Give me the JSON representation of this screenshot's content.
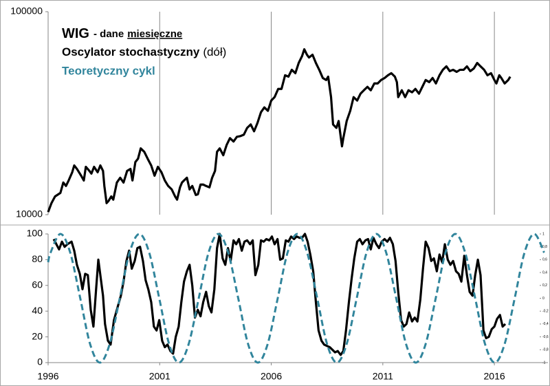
{
  "chart_data": [
    {
      "type": "line",
      "log_scale": true,
      "grid": "x",
      "show_xtick_labels": false,
      "annotations": [
        "- dane",
        "miesięczne"
      ],
      "xlim": [
        1996,
        2018.4
      ],
      "xticks": [
        1996,
        2001,
        2006,
        2011,
        2016
      ],
      "ylim": [
        10000,
        100000
      ],
      "yticks": [
        10000,
        100000
      ],
      "series": [
        {
          "name": "WIG",
          "color": "#000000",
          "x": [
            1996.0,
            1996.15,
            1996.31,
            1996.55,
            1996.68,
            1996.8,
            1996.92,
            1997.08,
            1997.17,
            1997.29,
            1997.48,
            1997.6,
            1997.69,
            1997.85,
            1997.94,
            1998.06,
            1998.22,
            1998.34,
            1998.46,
            1998.52,
            1998.62,
            1998.71,
            1998.83,
            1998.92,
            1999.08,
            1999.23,
            1999.38,
            1999.54,
            1999.69,
            1999.78,
            1999.91,
            2000.03,
            2000.15,
            2000.31,
            2000.46,
            2000.62,
            2000.77,
            2000.92,
            2001.08,
            2001.23,
            2001.38,
            2001.54,
            2001.69,
            2001.78,
            2001.91,
            2002.0,
            2002.09,
            2002.22,
            2002.34,
            2002.46,
            2002.62,
            2002.71,
            2002.83,
            2002.95,
            2003.08,
            2003.23,
            2003.35,
            2003.48,
            2003.57,
            2003.69,
            2003.85,
            2004.0,
            2004.15,
            2004.31,
            2004.46,
            2004.62,
            2004.77,
            2004.92,
            2005.08,
            2005.23,
            2005.38,
            2005.54,
            2005.69,
            2005.85,
            2006.0,
            2006.15,
            2006.31,
            2006.46,
            2006.62,
            2006.77,
            2006.92,
            2007.08,
            2007.23,
            2007.38,
            2007.48,
            2007.6,
            2007.69,
            2007.85,
            2008.0,
            2008.15,
            2008.31,
            2008.46,
            2008.55,
            2008.68,
            2008.77,
            2008.92,
            2009.02,
            2009.17,
            2009.23,
            2009.38,
            2009.54,
            2009.69,
            2009.85,
            2010.0,
            2010.15,
            2010.31,
            2010.46,
            2010.62,
            2010.77,
            2010.92,
            2011.08,
            2011.23,
            2011.38,
            2011.54,
            2011.63,
            2011.69,
            2011.85,
            2012.0,
            2012.15,
            2012.31,
            2012.46,
            2012.62,
            2012.77,
            2012.92,
            2013.08,
            2013.23,
            2013.38,
            2013.54,
            2013.69,
            2013.85,
            2014.0,
            2014.15,
            2014.31,
            2014.46,
            2014.62,
            2014.77,
            2014.92,
            2015.08,
            2015.23,
            2015.38,
            2015.54,
            2015.69,
            2015.85,
            2016.0,
            2016.09,
            2016.22,
            2016.31,
            2016.46,
            2016.62,
            2016.71
          ],
          "values": [
            10300,
            11400,
            12300,
            12800,
            14400,
            13850,
            14740,
            16180,
            17480,
            16810,
            15560,
            14740,
            17210,
            16430,
            15930,
            17210,
            16180,
            17480,
            16430,
            13850,
            11400,
            11700,
            12300,
            11860,
            14400,
            15200,
            14400,
            16430,
            16810,
            14740,
            18170,
            18880,
            21210,
            20400,
            18880,
            17480,
            15560,
            17210,
            16180,
            14740,
            13850,
            13320,
            12300,
            11860,
            13630,
            14400,
            14740,
            15200,
            13320,
            13850,
            12500,
            12600,
            14070,
            14070,
            13850,
            13630,
            15200,
            16430,
            20400,
            21210,
            19630,
            22050,
            23830,
            22930,
            24200,
            24390,
            24770,
            26770,
            27830,
            25750,
            28270,
            31990,
            33780,
            32490,
            36500,
            37950,
            41650,
            41650,
            48630,
            47870,
            51730,
            49780,
            55900,
            60400,
            65280,
            61360,
            59470,
            61360,
            55900,
            51730,
            47140,
            46060,
            47870,
            37950,
            27830,
            26770,
            28930,
            21710,
            23830,
            28930,
            32490,
            37950,
            36500,
            39450,
            41010,
            42630,
            41010,
            44310,
            44310,
            46060,
            47140,
            48630,
            49780,
            47870,
            45000,
            37950,
            41010,
            37950,
            41010,
            40070,
            41650,
            39450,
            42630,
            46060,
            45000,
            47140,
            44310,
            48630,
            51730,
            53780,
            50940,
            51730,
            50540,
            51730,
            51730,
            53780,
            50940,
            52540,
            55900,
            53780,
            51730,
            48630,
            49780,
            46060,
            44310,
            48630,
            47140,
            44310,
            46060,
            47870
          ]
        }
      ]
    },
    {
      "type": "line",
      "annotations": [
        "(dół)"
      ],
      "xlim": [
        1996,
        2018.4
      ],
      "xticks": [
        1996,
        2001,
        2006,
        2011,
        2016
      ],
      "ylim": [
        0,
        100
      ],
      "yticks": [
        0,
        20,
        40,
        60,
        80,
        100
      ],
      "y2lim": [
        -1,
        1
      ],
      "y2ticks": [
        {
          "value": 1,
          "label": "1"
        },
        {
          "value": 0.8,
          "label": "0,8"
        },
        {
          "value": 0.6,
          "label": "0,6"
        },
        {
          "value": 0.4,
          "label": "0,4"
        },
        {
          "value": 0.2,
          "label": "0,2"
        },
        {
          "value": 0,
          "label": "0"
        },
        {
          "value": -0.2,
          "label": "-0,2"
        },
        {
          "value": -0.4,
          "label": "-0,4"
        },
        {
          "value": -0.6,
          "label": "-0,6"
        },
        {
          "value": -0.8,
          "label": "-0,8"
        },
        {
          "value": -1,
          "label": "-1"
        }
      ],
      "series": [
        {
          "name": "Oscylator stochastyczny",
          "color": "#000000",
          "x": [
            1996.25,
            1996.37,
            1996.49,
            1996.62,
            1996.74,
            1996.86,
            1997.05,
            1997.17,
            1997.29,
            1997.42,
            1997.54,
            1997.66,
            1997.78,
            1997.91,
            1998.03,
            1998.15,
            1998.25,
            1998.37,
            1998.46,
            1998.55,
            1998.68,
            1998.8,
            1998.95,
            1999.08,
            1999.26,
            1999.38,
            1999.51,
            1999.63,
            1999.75,
            1999.88,
            2000.0,
            2000.12,
            2000.25,
            2000.37,
            2000.49,
            2000.62,
            2000.74,
            2000.86,
            2000.98,
            2001.11,
            2001.23,
            2001.35,
            2001.48,
            2001.6,
            2001.72,
            2001.85,
            2001.97,
            2002.09,
            2002.22,
            2002.34,
            2002.46,
            2002.58,
            2002.71,
            2002.83,
            2002.95,
            2003.08,
            2003.2,
            2003.32,
            2003.45,
            2003.57,
            2003.69,
            2003.82,
            2003.94,
            2004.06,
            2004.18,
            2004.31,
            2004.43,
            2004.55,
            2004.68,
            2004.8,
            2004.92,
            2005.05,
            2005.17,
            2005.29,
            2005.42,
            2005.54,
            2005.66,
            2005.78,
            2005.91,
            2006.03,
            2006.15,
            2006.28,
            2006.4,
            2006.52,
            2006.65,
            2006.77,
            2006.89,
            2007.02,
            2007.14,
            2007.26,
            2007.38,
            2007.51,
            2007.63,
            2007.75,
            2007.88,
            2008.0,
            2008.12,
            2008.25,
            2008.37,
            2008.49,
            2008.62,
            2008.74,
            2008.86,
            2008.98,
            2009.11,
            2009.23,
            2009.35,
            2009.48,
            2009.6,
            2009.72,
            2009.85,
            2009.97,
            2010.09,
            2010.22,
            2010.34,
            2010.46,
            2010.58,
            2010.71,
            2010.83,
            2010.95,
            2011.08,
            2011.2,
            2011.32,
            2011.45,
            2011.57,
            2011.69,
            2011.82,
            2011.94,
            2012.06,
            2012.18,
            2012.31,
            2012.43,
            2012.55,
            2012.68,
            2012.8,
            2012.92,
            2013.05,
            2013.17,
            2013.29,
            2013.42,
            2013.54,
            2013.66,
            2013.78,
            2013.91,
            2014.03,
            2014.15,
            2014.28,
            2014.4,
            2014.52,
            2014.65,
            2014.77,
            2014.89,
            2015.02,
            2015.14,
            2015.26,
            2015.38,
            2015.51,
            2015.63,
            2015.75,
            2015.88,
            2016.0,
            2016.12,
            2016.25,
            2016.37,
            2016.49
          ],
          "values": [
            96,
            92,
            88,
            94,
            90,
            92,
            94,
            87,
            76,
            69,
            57,
            69,
            68,
            41,
            28,
            57,
            80,
            64,
            52,
            30,
            17,
            14,
            33,
            41,
            52,
            63,
            79,
            87,
            73,
            79,
            89,
            90,
            79,
            64,
            57,
            47,
            28,
            25,
            33,
            17,
            12,
            14,
            9,
            7,
            20,
            28,
            47,
            63,
            71,
            76,
            60,
            35,
            41,
            36,
            47,
            55,
            44,
            39,
            57,
            89,
            100,
            81,
            76,
            89,
            79,
            95,
            92,
            96,
            87,
            94,
            95,
            92,
            95,
            68,
            76,
            95,
            94,
            96,
            95,
            98,
            92,
            96,
            80,
            81,
            95,
            94,
            98,
            96,
            98,
            97,
            97,
            100,
            94,
            84,
            71,
            47,
            25,
            17,
            14,
            13,
            12,
            10,
            8,
            9,
            6,
            9,
            25,
            47,
            65,
            81,
            94,
            96,
            92,
            95,
            96,
            88,
            97,
            92,
            89,
            94,
            96,
            94,
            97,
            92,
            79,
            55,
            33,
            28,
            30,
            39,
            32,
            35,
            32,
            49,
            73,
            94,
            89,
            79,
            81,
            71,
            84,
            78,
            92,
            80,
            76,
            79,
            71,
            69,
            63,
            83,
            68,
            55,
            52,
            68,
            80,
            68,
            25,
            19,
            20,
            26,
            28,
            34,
            37,
            28,
            30
          ]
        },
        {
          "name": "Teoretyczny cykl",
          "color": "#31859c",
          "axis": "y2",
          "dash": true,
          "smooth": true,
          "x": [
            1996.0,
            1996.11,
            1996.55,
            1996.99,
            1997.44,
            1997.88,
            1998.32,
            1998.76,
            1999.21,
            1999.65,
            2000.09,
            2000.53,
            2000.98,
            2001.42,
            2001.86,
            2002.3,
            2002.75,
            2003.19,
            2003.63,
            2004.07,
            2004.52,
            2004.96,
            2005.4,
            2005.84,
            2006.29,
            2006.73,
            2007.17,
            2007.61,
            2008.06,
            2008.5,
            2008.94,
            2009.38,
            2009.83,
            2010.27,
            2010.71,
            2011.15,
            2011.6,
            2012.04,
            2012.48,
            2012.92,
            2013.37,
            2013.81,
            2014.25,
            2014.69,
            2015.14,
            2015.58,
            2016.02,
            2016.46,
            2016.91,
            2017.35,
            2017.79,
            2018.23
          ],
          "values": [
            0.56,
            0.71,
            1,
            0.71,
            0,
            -0.71,
            -1,
            -0.71,
            0,
            0.71,
            1,
            0.71,
            0,
            -0.71,
            -1,
            -0.71,
            0,
            0.71,
            1,
            0.71,
            0,
            -0.71,
            -1,
            -0.71,
            0,
            0.71,
            1,
            0.71,
            0,
            -0.71,
            -1,
            -0.71,
            0,
            0.71,
            1,
            0.71,
            0,
            -0.71,
            -1,
            -0.71,
            0,
            0.71,
            1,
            0.71,
            0,
            -0.71,
            -1,
            -0.71,
            0,
            0.71,
            1,
            0.71
          ]
        }
      ]
    }
  ]
}
